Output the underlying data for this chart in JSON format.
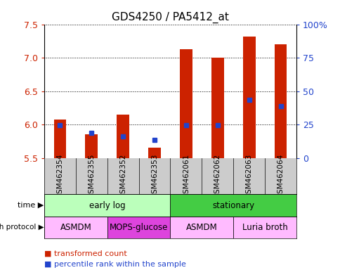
{
  "title": "GDS4250 / PA5412_at",
  "samples": [
    "GSM462354",
    "GSM462355",
    "GSM462352",
    "GSM462353",
    "GSM462061",
    "GSM462062",
    "GSM462063",
    "GSM462064"
  ],
  "red_values": [
    6.07,
    5.85,
    6.15,
    5.65,
    7.13,
    7.0,
    7.32,
    7.2
  ],
  "blue_values": [
    5.99,
    5.88,
    5.82,
    5.77,
    5.99,
    5.99,
    6.37,
    6.28
  ],
  "ymin": 5.5,
  "ymax": 7.5,
  "y_left_ticks": [
    5.5,
    6.0,
    6.5,
    7.0,
    7.5
  ],
  "y_right_ticks": [
    0,
    25,
    50,
    75,
    100
  ],
  "time_labels": [
    {
      "label": "early log",
      "start": 0,
      "end": 4,
      "color": "#bbffbb"
    },
    {
      "label": "stationary",
      "start": 4,
      "end": 8,
      "color": "#44cc44"
    }
  ],
  "protocol_labels": [
    {
      "label": "ASMDM",
      "start": 0,
      "end": 2,
      "color": "#ffbbff"
    },
    {
      "label": "MOPS-glucose",
      "start": 2,
      "end": 4,
      "color": "#dd44dd"
    },
    {
      "label": "ASMDM",
      "start": 4,
      "end": 6,
      "color": "#ffbbff"
    },
    {
      "label": "Luria broth",
      "start": 6,
      "end": 8,
      "color": "#ffbbff"
    }
  ],
  "bar_width": 0.4,
  "red_color": "#cc2200",
  "blue_color": "#2244cc",
  "left_axis_color": "#cc2200",
  "right_axis_color": "#2244cc",
  "sample_bg": "#cccccc",
  "legend_red": "transformed count",
  "legend_blue": "percentile rank within the sample",
  "time_label": "time",
  "protocol_label": "growth protocol"
}
